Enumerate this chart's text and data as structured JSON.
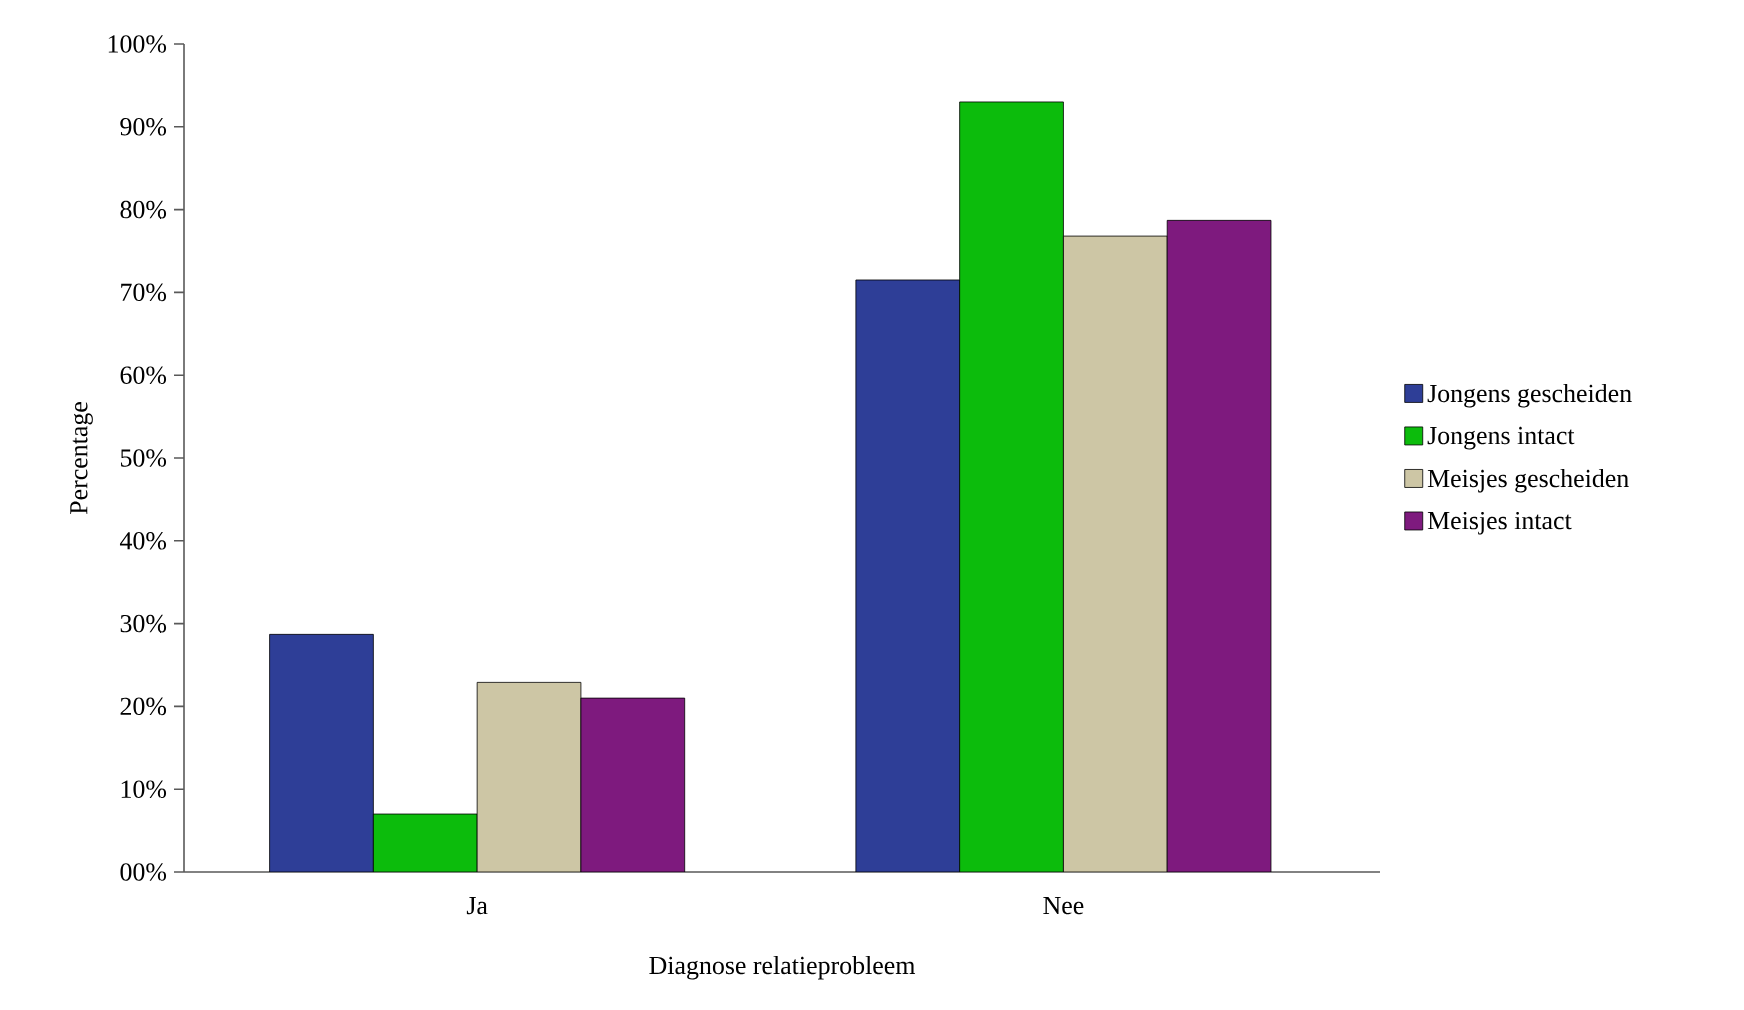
{
  "chart_data": {
    "type": "bar",
    "xlabel": "Diagnose relatieprobleem",
    "ylabel": "Percentage",
    "categories": [
      "Ja",
      "Nee"
    ],
    "series": [
      {
        "name": "Jongens gescheiden",
        "color": "#2e3e97",
        "values": [
          28.7,
          71.5
        ]
      },
      {
        "name": "Jongens intact",
        "color": "#0cbc0c",
        "values": [
          7.0,
          93.0
        ]
      },
      {
        "name": "Meisjes gescheiden",
        "color": "#cdc6a5",
        "values": [
          22.9,
          76.8
        ]
      },
      {
        "name": "Meisjes intact",
        "color": "#7e1a7e",
        "values": [
          21.0,
          78.7
        ]
      }
    ],
    "ylim": [
      0,
      100
    ],
    "yticks": [
      {
        "value": 0,
        "label": "00%"
      },
      {
        "value": 10,
        "label": "10%"
      },
      {
        "value": 20,
        "label": "20%"
      },
      {
        "value": 30,
        "label": "30%"
      },
      {
        "value": 40,
        "label": "40%"
      },
      {
        "value": 50,
        "label": "50%"
      },
      {
        "value": 60,
        "label": "60%"
      },
      {
        "value": 70,
        "label": "70%"
      },
      {
        "value": 80,
        "label": "80%"
      },
      {
        "value": 90,
        "label": "90%"
      },
      {
        "value": 100,
        "label": "100%"
      }
    ],
    "grid": false,
    "legend": "right"
  }
}
